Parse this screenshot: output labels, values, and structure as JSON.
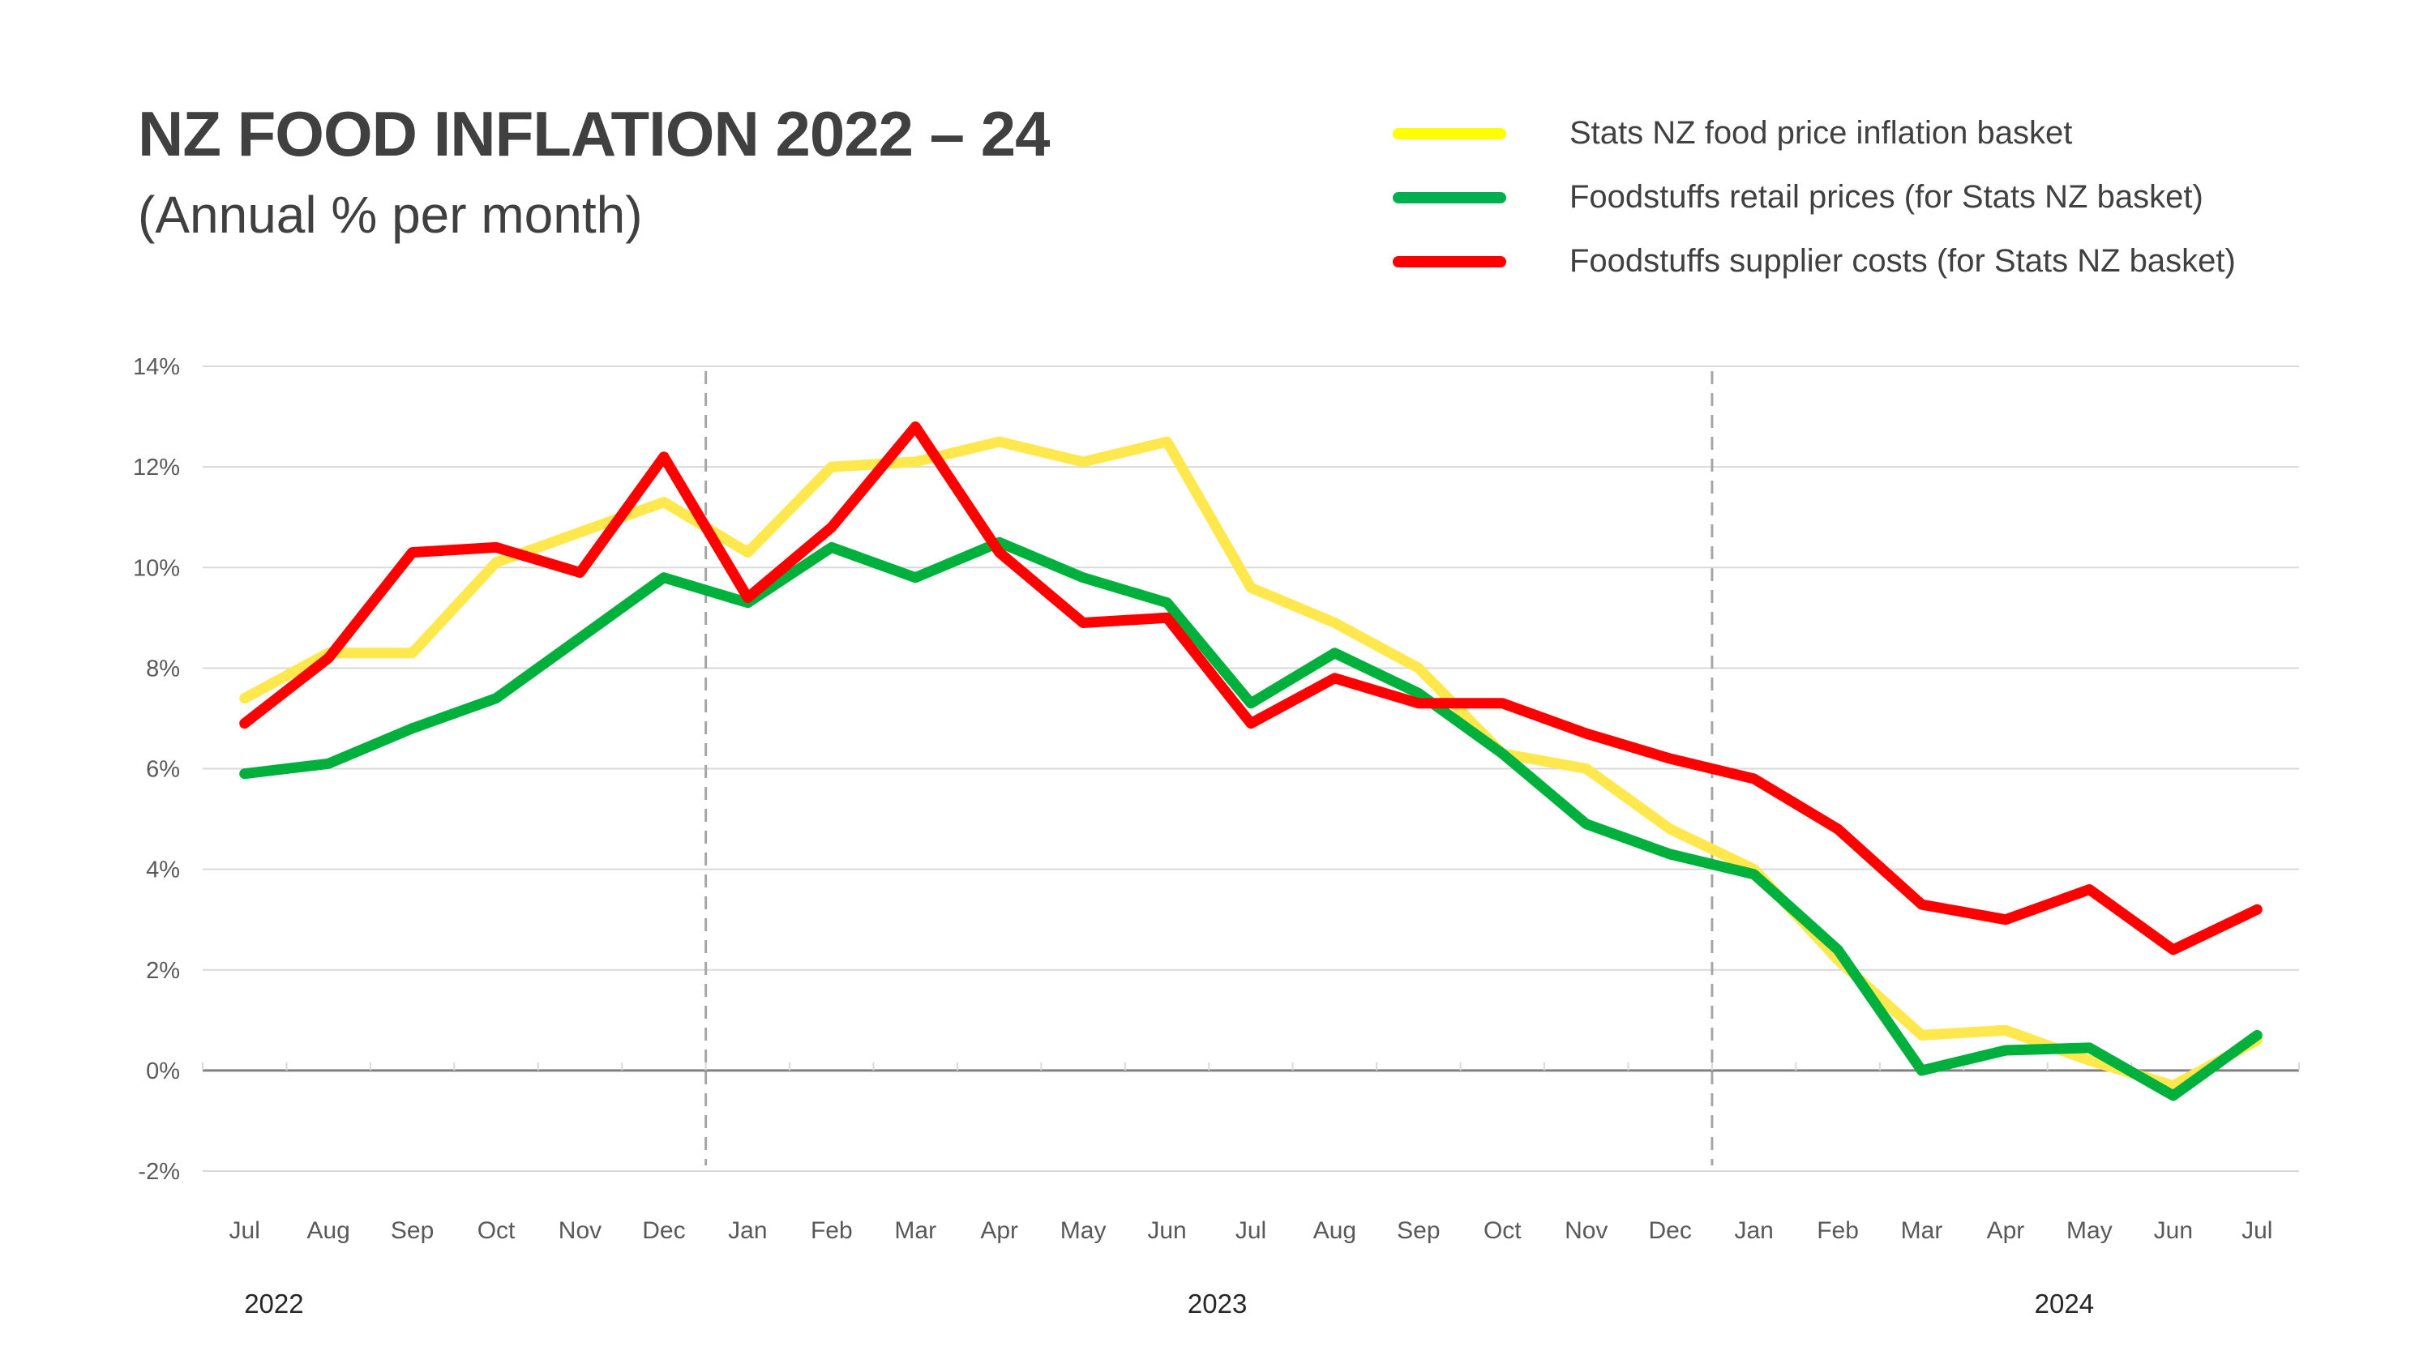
{
  "header": {
    "title": "NZ FOOD INFLATION 2022 – 24",
    "subtitle": "(Annual % per month)"
  },
  "legend": [
    {
      "label": "Stats NZ food price inflation basket",
      "color": "#FFFF00"
    },
    {
      "label": "Foodstuffs retail prices (for Stats NZ basket)",
      "color": "#00B050"
    },
    {
      "label": "Foodstuffs supplier costs (for Stats NZ basket)",
      "color": "#FF0000"
    }
  ],
  "chart_data": {
    "type": "line",
    "title": "NZ FOOD INFLATION 2022 – 24",
    "subtitle": "(Annual % per month)",
    "xlabel": "",
    "ylabel": "",
    "ylim": [
      -2,
      14
    ],
    "yticks": [
      -2,
      0,
      2,
      4,
      6,
      8,
      10,
      12,
      14
    ],
    "ytick_labels": [
      "-2%",
      "0%",
      "2%",
      "4%",
      "6%",
      "8%",
      "10%",
      "12%",
      "14%"
    ],
    "grid": true,
    "legend_position": "top-right",
    "categories": [
      "Jul",
      "Aug",
      "Sep",
      "Oct",
      "Nov",
      "Dec",
      "Jan",
      "Feb",
      "Mar",
      "Apr",
      "May",
      "Jun",
      "Jul",
      "Aug",
      "Sep",
      "Oct",
      "Nov",
      "Dec",
      "Jan",
      "Feb",
      "Mar",
      "Apr",
      "May",
      "Jun",
      "Jul"
    ],
    "year_labels": [
      {
        "label": "2022",
        "at_index": 0.35
      },
      {
        "label": "2023",
        "at_index": 11.6
      },
      {
        "label": "2024",
        "at_index": 21.7
      }
    ],
    "year_dividers_after_index": [
      5,
      17
    ],
    "series": [
      {
        "name": "Stats NZ food price inflation basket",
        "color": "#FFE84D",
        "values": [
          7.4,
          8.3,
          8.3,
          10.1,
          10.7,
          11.3,
          10.3,
          12.0,
          12.1,
          12.5,
          12.1,
          12.5,
          9.6,
          8.9,
          8.0,
          6.3,
          6.0,
          4.8,
          4.0,
          2.2,
          0.7,
          0.8,
          0.2,
          -0.3,
          0.6
        ]
      },
      {
        "name": "Foodstuffs retail prices (for Stats NZ basket)",
        "color": "#00B03C",
        "values": [
          5.9,
          6.1,
          6.8,
          7.4,
          8.6,
          9.8,
          9.3,
          10.4,
          9.8,
          10.5,
          9.8,
          9.3,
          7.3,
          8.3,
          7.5,
          6.3,
          4.9,
          4.3,
          3.9,
          2.4,
          0.0,
          0.4,
          0.45,
          -0.5,
          0.7
        ]
      },
      {
        "name": "Foodstuffs supplier costs (for Stats NZ basket)",
        "color": "#FF0000",
        "values": [
          6.9,
          8.2,
          10.3,
          10.4,
          9.9,
          12.2,
          9.4,
          10.8,
          12.8,
          10.3,
          8.9,
          9.0,
          6.9,
          7.8,
          7.3,
          7.3,
          6.7,
          6.2,
          5.8,
          4.8,
          3.3,
          3.0,
          3.6,
          2.4,
          3.2
        ]
      }
    ]
  }
}
